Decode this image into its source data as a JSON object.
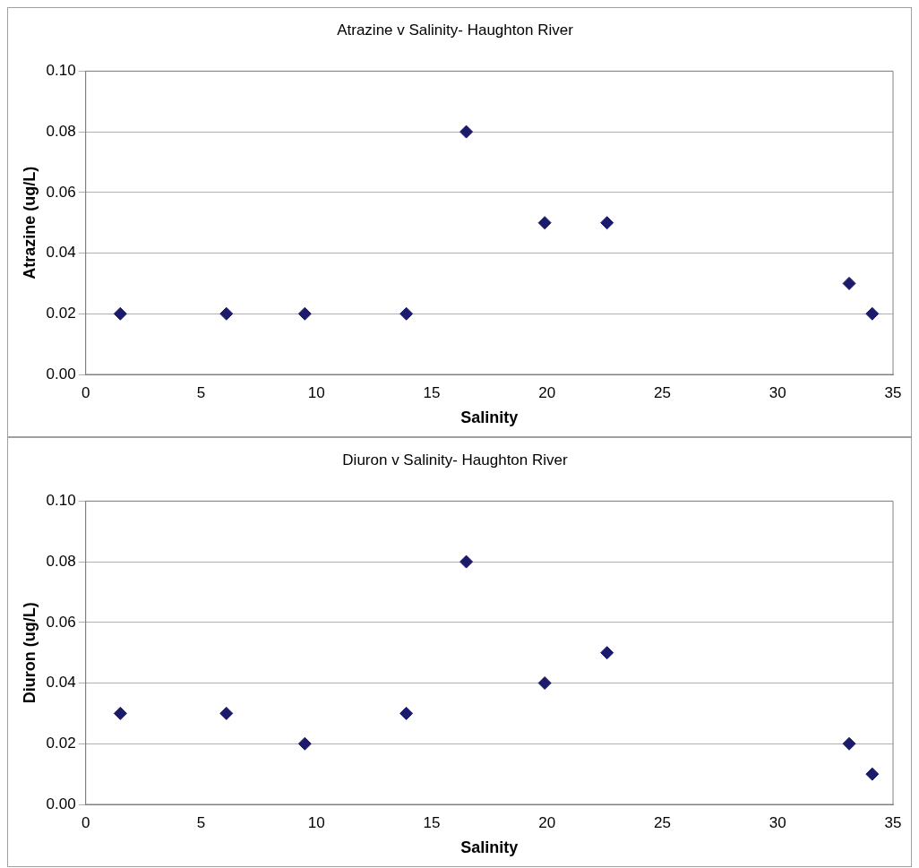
{
  "chart_data": [
    {
      "type": "scatter",
      "title": "Atrazine v Salinity- Haughton River",
      "xlabel": "Salinity",
      "ylabel": "Atrazine (ug/L)",
      "x": [
        1.5,
        6.1,
        9.5,
        13.9,
        16.5,
        19.9,
        22.6,
        33.1,
        34.1
      ],
      "series": [
        {
          "color": "#1c1a6b",
          "values": [
            0.02,
            0.02,
            0.02,
            0.02,
            0.08,
            0.05,
            0.05,
            0.03,
            0.02
          ]
        }
      ],
      "xlim": [
        0,
        35
      ],
      "xticks": [
        0,
        5,
        10,
        15,
        20,
        25,
        30,
        35
      ],
      "ylim": [
        0,
        0.1
      ],
      "yticks": [
        {
          "value": 0,
          "label": "0.00"
        },
        {
          "value": 0.02,
          "label": "0.02"
        },
        {
          "value": 0.04,
          "label": "0.04"
        },
        {
          "value": 0.06,
          "label": "0.06"
        },
        {
          "value": 0.08,
          "label": "0.08"
        },
        {
          "value": 0.1,
          "label": "0.10"
        }
      ],
      "grid": "y",
      "legend": false,
      "marker": "diamond"
    },
    {
      "type": "scatter",
      "title": "Diuron v Salinity- Haughton River",
      "xlabel": "Salinity",
      "ylabel": "Diuron (ug/L)",
      "x": [
        1.5,
        6.1,
        9.5,
        13.9,
        16.5,
        19.9,
        22.6,
        33.1,
        34.1
      ],
      "series": [
        {
          "color": "#1c1a6b",
          "values": [
            0.03,
            0.03,
            0.02,
            0.03,
            0.08,
            0.04,
            0.05,
            0.02,
            0.01
          ]
        }
      ],
      "xlim": [
        0,
        35
      ],
      "xticks": [
        0,
        5,
        10,
        15,
        20,
        25,
        30,
        35
      ],
      "ylim": [
        0,
        0.1
      ],
      "yticks": [
        {
          "value": 0,
          "label": "0.00"
        },
        {
          "value": 0.02,
          "label": "0.02"
        },
        {
          "value": 0.04,
          "label": "0.04"
        },
        {
          "value": 0.06,
          "label": "0.06"
        },
        {
          "value": 0.08,
          "label": "0.08"
        },
        {
          "value": 0.1,
          "label": "0.10"
        }
      ],
      "grid": "y",
      "legend": false,
      "marker": "diamond"
    }
  ]
}
